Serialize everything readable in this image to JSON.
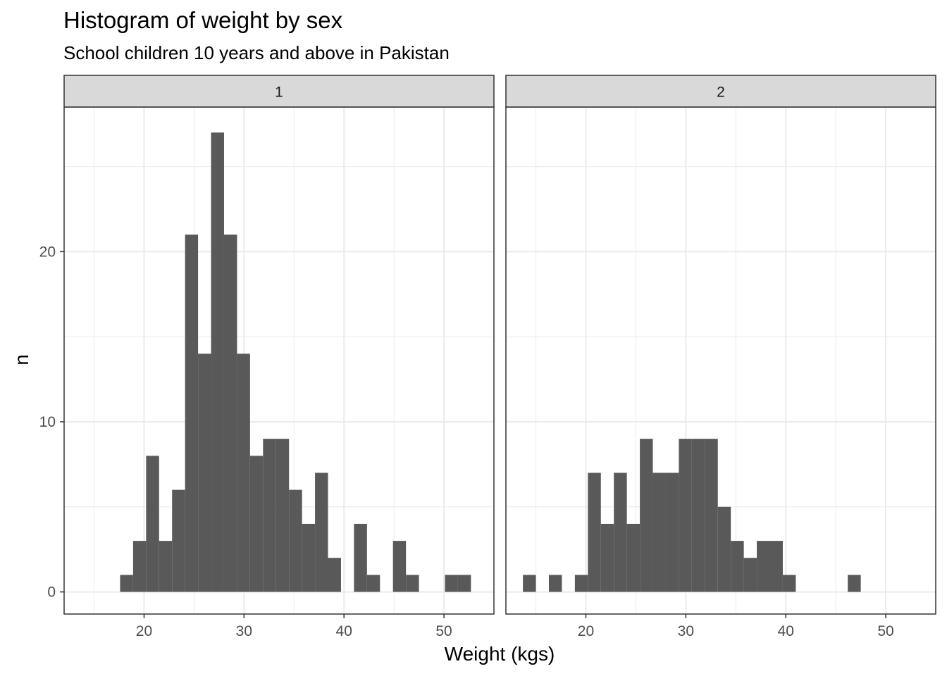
{
  "chart_data": {
    "type": "bar",
    "title": "Histogram of weight by sex",
    "subtitle": "School children 10 years and above in Pakistan",
    "xlabel": "Weight (kgs)",
    "ylabel": "n",
    "xlim": [
      12,
      55
    ],
    "ylim": [
      -1.3,
      28.5
    ],
    "x_ticks": [
      20,
      30,
      40,
      50
    ],
    "y_ticks": [
      0,
      10,
      20
    ],
    "grid": true,
    "bin_width": 1.3,
    "facets": [
      {
        "label": "1",
        "bins": [
          {
            "x0": 17.6,
            "count": 1
          },
          {
            "x0": 18.9,
            "count": 3
          },
          {
            "x0": 20.2,
            "count": 8
          },
          {
            "x0": 21.5,
            "count": 3
          },
          {
            "x0": 22.8,
            "count": 6
          },
          {
            "x0": 24.1,
            "count": 21
          },
          {
            "x0": 25.4,
            "count": 14
          },
          {
            "x0": 26.7,
            "count": 27
          },
          {
            "x0": 28.0,
            "count": 21
          },
          {
            "x0": 29.3,
            "count": 14
          },
          {
            "x0": 30.6,
            "count": 8
          },
          {
            "x0": 31.9,
            "count": 9
          },
          {
            "x0": 33.2,
            "count": 9
          },
          {
            "x0": 34.5,
            "count": 6
          },
          {
            "x0": 35.8,
            "count": 4
          },
          {
            "x0": 37.1,
            "count": 7
          },
          {
            "x0": 38.4,
            "count": 2
          },
          {
            "x0": 41.0,
            "count": 4
          },
          {
            "x0": 42.3,
            "count": 1
          },
          {
            "x0": 44.9,
            "count": 3
          },
          {
            "x0": 46.2,
            "count": 1
          },
          {
            "x0": 50.1,
            "count": 1
          },
          {
            "x0": 51.4,
            "count": 1
          }
        ]
      },
      {
        "label": "2",
        "bins": [
          {
            "x0": 13.7,
            "count": 1
          },
          {
            "x0": 16.3,
            "count": 1
          },
          {
            "x0": 18.9,
            "count": 1
          },
          {
            "x0": 20.2,
            "count": 7
          },
          {
            "x0": 21.5,
            "count": 4
          },
          {
            "x0": 22.8,
            "count": 7
          },
          {
            "x0": 24.1,
            "count": 4
          },
          {
            "x0": 25.4,
            "count": 9
          },
          {
            "x0": 26.7,
            "count": 7
          },
          {
            "x0": 28.0,
            "count": 7
          },
          {
            "x0": 29.3,
            "count": 9
          },
          {
            "x0": 30.6,
            "count": 9
          },
          {
            "x0": 31.9,
            "count": 9
          },
          {
            "x0": 33.2,
            "count": 5
          },
          {
            "x0": 34.5,
            "count": 3
          },
          {
            "x0": 35.8,
            "count": 2
          },
          {
            "x0": 37.1,
            "count": 3
          },
          {
            "x0": 38.4,
            "count": 3
          },
          {
            "x0": 39.7,
            "count": 1
          },
          {
            "x0": 46.2,
            "count": 1
          }
        ]
      }
    ],
    "colors": {
      "bar": "#595959",
      "grid": "#ebebeb",
      "panel_border": "#333333",
      "strip_fill": "#d9d9d9",
      "tick_text": "#4d4d4d"
    }
  }
}
